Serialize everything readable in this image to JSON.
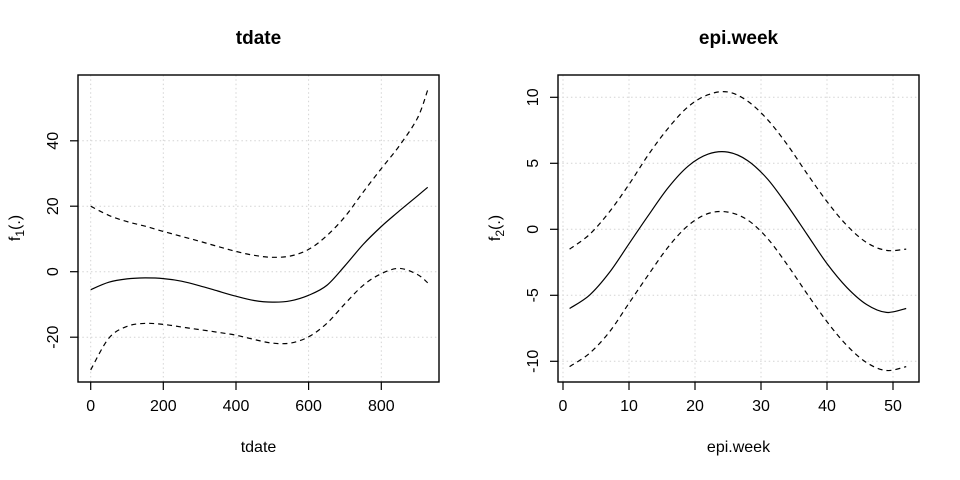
{
  "colors": {
    "background": "#ffffff",
    "curve": "#000000",
    "grid": "#d4d4d4",
    "axis": "#000000",
    "text": "#000000"
  },
  "chart_data": [
    {
      "type": "line",
      "title": "tdate",
      "xlabel": "tdate",
      "ylabel": {
        "base": "f",
        "sub": "1",
        "suffix": "(.)"
      },
      "xlim": [
        -35,
        959
      ],
      "ylim": [
        -33.7,
        60.1
      ],
      "xticks": [
        0,
        200,
        400,
        600,
        800
      ],
      "yticks": [
        -20,
        0,
        20,
        40
      ],
      "grid": true,
      "legend": "none",
      "x": [
        0,
        50,
        100,
        150,
        200,
        250,
        300,
        350,
        400,
        450,
        500,
        550,
        600,
        650,
        700,
        750,
        800,
        850,
        900,
        928
      ],
      "series": [
        {
          "name": "fit",
          "style": "solid",
          "y": [
            -5.5,
            -3.2,
            -2.2,
            -1.9,
            -2.1,
            -2.9,
            -4.3,
            -5.9,
            -7.5,
            -8.8,
            -9.3,
            -8.9,
            -7.2,
            -4.2,
            1.8,
            8.3,
            13.8,
            18.6,
            23.2,
            25.8
          ]
        },
        {
          "name": "upper-ci",
          "style": "dashed",
          "y": [
            20.0,
            17.2,
            15.3,
            13.9,
            12.3,
            10.8,
            9.3,
            7.7,
            6.2,
            5.0,
            4.4,
            4.8,
            6.8,
            11.0,
            16.8,
            24.3,
            31.5,
            38.5,
            47.0,
            55.5
          ]
        },
        {
          "name": "lower-ci",
          "style": "dashed",
          "y": [
            -30.0,
            -20.3,
            -16.7,
            -15.8,
            -16.1,
            -16.9,
            -17.7,
            -18.5,
            -19.4,
            -20.7,
            -21.8,
            -21.8,
            -19.9,
            -15.8,
            -9.8,
            -4.2,
            -0.6,
            1.0,
            -0.9,
            -3.4
          ]
        }
      ]
    },
    {
      "type": "line",
      "title": "epi.week",
      "xlabel": "epi.week",
      "ylabel": {
        "base": "f",
        "sub": "2",
        "suffix": "(.)"
      },
      "xlim": [
        -0.76,
        53.94
      ],
      "ylim": [
        -11.57,
        11.69
      ],
      "xticks": [
        0,
        10,
        20,
        30,
        40,
        50
      ],
      "yticks": [
        -10,
        -5,
        0,
        5,
        10
      ],
      "grid": true,
      "legend": "none",
      "x": [
        1,
        4,
        7,
        10,
        13,
        16,
        19,
        22,
        25,
        28,
        31,
        34,
        37,
        40,
        43,
        46,
        49,
        52
      ],
      "series": [
        {
          "name": "fit",
          "style": "solid",
          "y": [
            -6.0,
            -5.0,
            -3.3,
            -1.1,
            1.1,
            3.2,
            4.8,
            5.7,
            5.85,
            5.2,
            3.8,
            1.8,
            -0.4,
            -2.6,
            -4.4,
            -5.7,
            -6.3,
            -6.0
          ]
        },
        {
          "name": "upper-ci",
          "style": "dashed",
          "y": [
            -1.5,
            -0.4,
            1.3,
            3.4,
            5.7,
            7.7,
            9.3,
            10.2,
            10.4,
            9.7,
            8.3,
            6.4,
            4.2,
            2.1,
            0.3,
            -1.0,
            -1.6,
            -1.5
          ]
        },
        {
          "name": "lower-ci",
          "style": "dashed",
          "y": [
            -10.4,
            -9.4,
            -7.8,
            -5.6,
            -3.4,
            -1.3,
            0.3,
            1.2,
            1.3,
            0.7,
            -0.7,
            -2.7,
            -4.9,
            -7.0,
            -8.8,
            -10.1,
            -10.7,
            -10.4
          ]
        }
      ]
    }
  ]
}
